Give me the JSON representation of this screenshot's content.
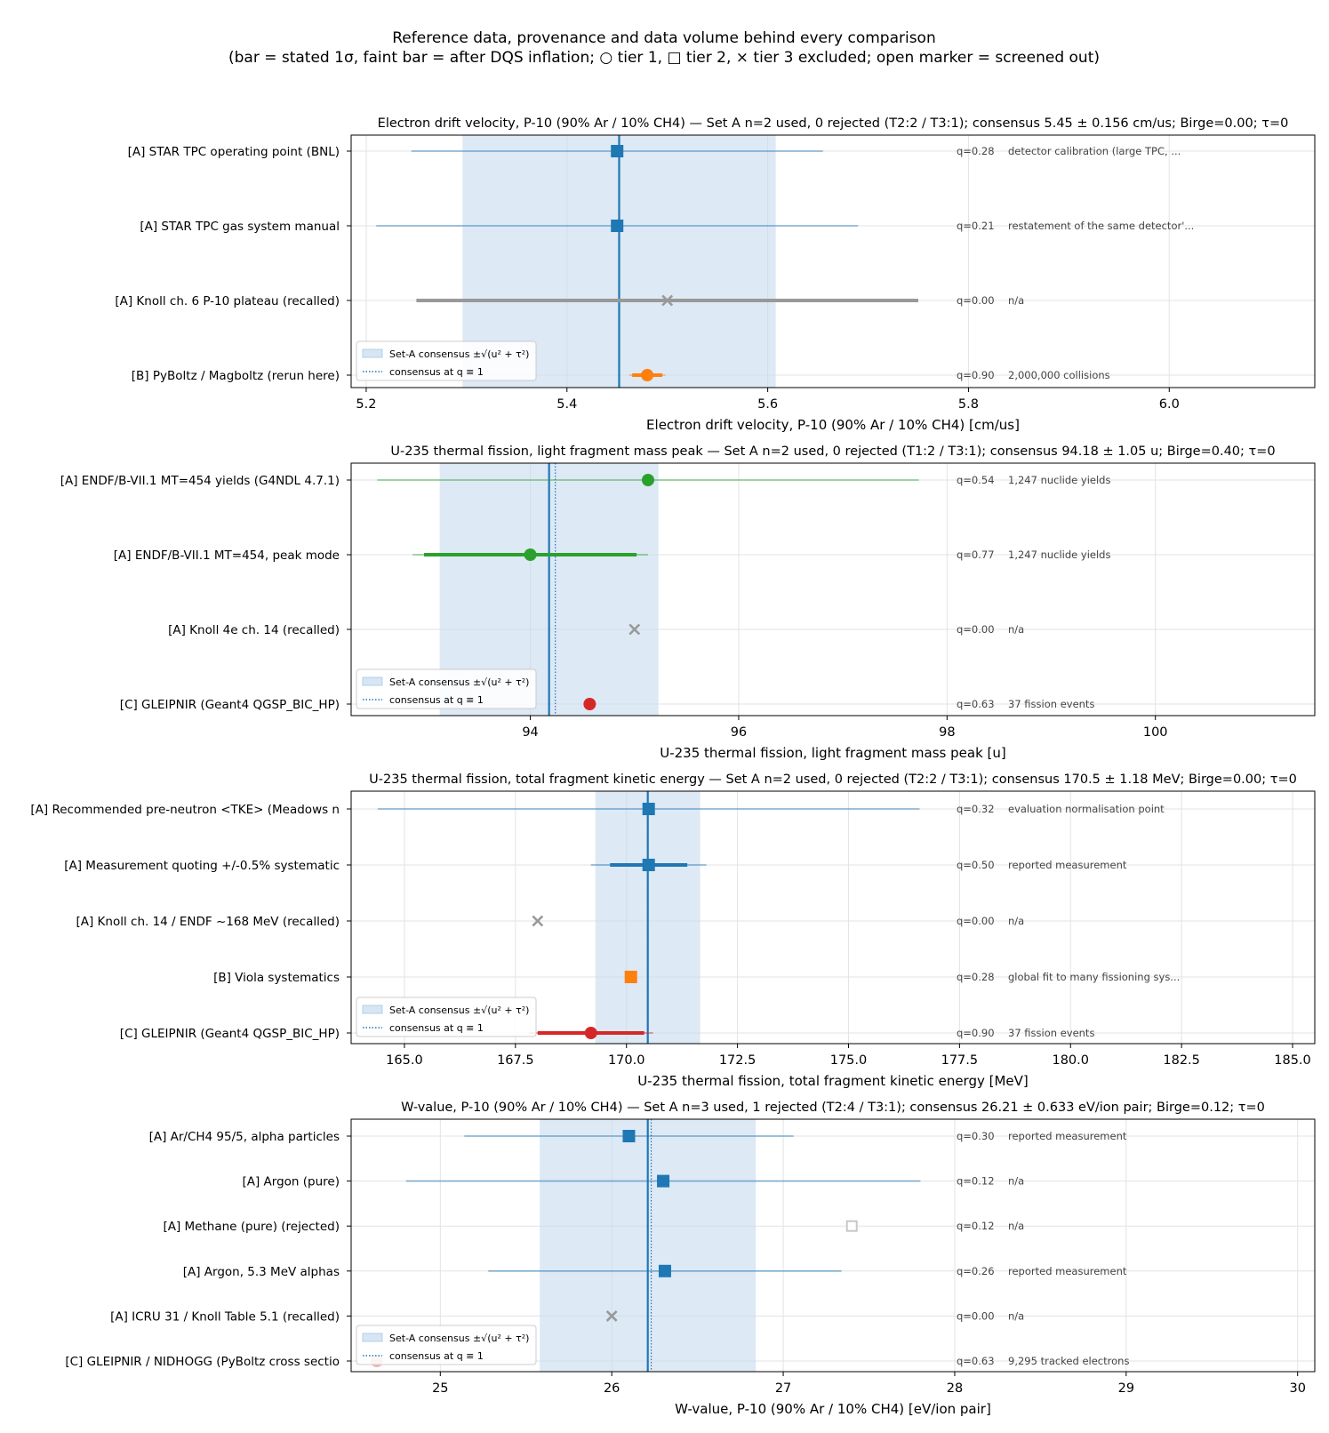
{
  "figure": {
    "title_line1": "Reference data, provenance and data volume behind every comparison",
    "title_line2": "(bar = stated 1σ, faint bar = after DQS inflation; ○ tier 1, □ tier 2, × tier 3 excluded; open marker = screened out)"
  },
  "legend": {
    "band_label": "Set-A consensus ±√(u² + τ²)",
    "line_label": "consensus at q ≡ 1"
  },
  "colors": {
    "blue": "#1f77b4",
    "orange": "#ff7f0e",
    "green": "#2ca02c",
    "red": "#d62728",
    "gray": "#999999",
    "band": "#c6dbef"
  },
  "chart_data": [
    {
      "type": "scatter",
      "title": "Electron drift velocity, P-10 (90% Ar / 10% CH4) — Set A n=2 used, 0 rejected (T2:2 / T3:1);  consensus 5.45 ± 0.156 cm/us;  Birge=0.00;  τ=0",
      "xlabel": "Electron drift velocity, P-10 (90% Ar / 10% CH4)  [cm/us]",
      "xlim": [
        5.185,
        6.145
      ],
      "xticks": [
        5.2,
        5.4,
        5.6,
        5.8,
        6.0
      ],
      "xtick_labels": [
        "5.2",
        "5.4",
        "5.6",
        "5.8",
        "6.0"
      ],
      "consensus": 5.452,
      "consensus_q1": 5.452,
      "band": [
        5.296,
        5.608
      ],
      "rows": [
        {
          "label": "[A] STAR TPC operating point (BNL)",
          "value": 5.45,
          "err_stated": null,
          "err_inflated": [
            5.245,
            5.655
          ],
          "marker": "square",
          "color": "blue",
          "filled": true,
          "annotation": "q=0.28   detector calibration (large TPC, ..."
        },
        {
          "label": "[A] STAR TPC gas system manual",
          "value": 5.45,
          "err_stated": null,
          "err_inflated": [
            5.21,
            5.69
          ],
          "marker": "square",
          "color": "blue",
          "filled": true,
          "annotation": "q=0.21   restatement of the same detector'..."
        },
        {
          "label": "[A] Knoll ch. 6 P-10 plateau (recalled)",
          "value": 5.5,
          "err_stated": [
            5.25,
            5.75
          ],
          "err_inflated": null,
          "marker": "x",
          "color": "gray",
          "filled": true,
          "annotation": "q=0.00   n/a"
        },
        {
          "label": "[B] PyBoltz / Magboltz (rerun here)",
          "value": 5.48,
          "err_stated": [
            5.465,
            5.495
          ],
          "err_inflated": [
            5.462,
            5.498
          ],
          "marker": "circle",
          "color": "orange",
          "filled": true,
          "annotation": "q=0.90   2,000,000 collisions"
        }
      ]
    },
    {
      "type": "scatter",
      "title": "U-235 thermal fission, light fragment mass peak — Set A n=2 used, 0 rejected (T1:2 / T3:1);  consensus 94.18 ± 1.05 u;  Birge=0.40;  τ=0",
      "xlabel": "U-235 thermal fission, light fragment mass peak  [u]",
      "xlim": [
        92.28,
        101.53
      ],
      "xticks": [
        94,
        96,
        98,
        100
      ],
      "xtick_labels": [
        "94",
        "96",
        "98",
        "100"
      ],
      "consensus": 94.18,
      "consensus_q1": 94.24,
      "band": [
        93.13,
        95.23
      ],
      "rows": [
        {
          "label": "[A] ENDF/B-VII.1 MT=454 yields (G4NDL 4.7.1)",
          "value": 95.13,
          "err_stated": null,
          "err_inflated": [
            92.53,
            97.73
          ],
          "marker": "circle",
          "color": "green",
          "filled": true,
          "annotation": "q=0.54   1,247 nuclide yields"
        },
        {
          "label": "[A] ENDF/B-VII.1 MT=454, peak mode",
          "value": 94.0,
          "err_stated": [
            92.98,
            95.02
          ],
          "err_inflated": [
            92.87,
            95.13
          ],
          "marker": "circle",
          "color": "green",
          "filled": true,
          "annotation": "q=0.77   1,247 nuclide yields"
        },
        {
          "label": "[A] Knoll 4e ch. 14 (recalled)",
          "value": 95.0,
          "err_stated": null,
          "err_inflated": null,
          "marker": "x",
          "color": "gray",
          "filled": true,
          "annotation": "q=0.00   n/a"
        },
        {
          "label": "[C] GLEIPNIR (Geant4 QGSP_BIC_HP)",
          "value": 94.57,
          "err_stated": null,
          "err_inflated": null,
          "marker": "circle",
          "color": "red",
          "filled": true,
          "annotation": "q=0.63   37 fission events"
        }
      ]
    },
    {
      "type": "scatter",
      "title": "U-235 thermal fission, total fragment kinetic energy — Set A n=2 used, 0 rejected (T2:2 / T3:1);  consensus 170.5 ± 1.18 MeV;  Birge=0.00;  τ=0",
      "xlabel": "U-235 thermal fission, total fragment kinetic energy  [MeV]",
      "xlim": [
        163.8,
        185.5
      ],
      "xticks": [
        165.0,
        167.5,
        170.0,
        172.5,
        175.0,
        177.5,
        180.0,
        182.5,
        185.0
      ],
      "xtick_labels": [
        "165.0",
        "167.5",
        "170.0",
        "172.5",
        "175.0",
        "177.5",
        "180.0",
        "182.5",
        "185.0"
      ],
      "consensus": 170.48,
      "consensus_q1": 170.48,
      "band": [
        169.3,
        171.66
      ],
      "rows": [
        {
          "label": "[A] Recommended pre-neutron <TKE> (Meadows n",
          "value": 170.5,
          "err_stated": null,
          "err_inflated": [
            164.4,
            176.6
          ],
          "marker": "square",
          "color": "blue",
          "filled": true,
          "annotation": "q=0.32   evaluation normalisation point"
        },
        {
          "label": "[A] Measurement quoting +/-0.5% systematic",
          "value": 170.5,
          "err_stated": [
            169.63,
            171.37
          ],
          "err_inflated": [
            169.2,
            171.8
          ],
          "marker": "square",
          "color": "blue",
          "filled": true,
          "annotation": "q=0.50   reported measurement"
        },
        {
          "label": "[A] Knoll ch. 14 / ENDF ~168 MeV (recalled)",
          "value": 168.0,
          "err_stated": null,
          "err_inflated": null,
          "marker": "x",
          "color": "gray",
          "filled": true,
          "annotation": "q=0.00   n/a"
        },
        {
          "label": "[B] Viola systematics",
          "value": 170.1,
          "err_stated": null,
          "err_inflated": null,
          "marker": "square",
          "color": "orange",
          "filled": true,
          "annotation": "q=0.28   global fit to many fissioning sys..."
        },
        {
          "label": "[C] GLEIPNIR (Geant4 QGSP_BIC_HP)",
          "value": 169.2,
          "err_stated": [
            168.0,
            170.4
          ],
          "err_inflated": [
            167.8,
            170.6
          ],
          "marker": "circle",
          "color": "red",
          "filled": true,
          "annotation": "q=0.90   37 fission events"
        }
      ]
    },
    {
      "type": "scatter",
      "title": "W-value, P-10 (90% Ar / 10% CH4) — Set A n=3 used, 1 rejected (T2:4 / T3:1);  consensus 26.21 ± 0.633 eV/ion pair;  Birge=0.12;  τ=0",
      "xlabel": "W-value, P-10 (90% Ar / 10% CH4)  [eV/ion pair]",
      "xlim": [
        24.48,
        30.1
      ],
      "xticks": [
        25,
        26,
        27,
        28,
        29,
        30
      ],
      "xtick_labels": [
        "25",
        "26",
        "27",
        "28",
        "29",
        "30"
      ],
      "consensus": 26.21,
      "consensus_q1": 26.23,
      "band": [
        25.58,
        26.84
      ],
      "rows": [
        {
          "label": "[A] Ar/CH4 95/5, alpha particles",
          "value": 26.1,
          "err_stated": null,
          "err_inflated": [
            25.14,
            27.06
          ],
          "marker": "square",
          "color": "blue",
          "filled": true,
          "annotation": "q=0.30   reported measurement"
        },
        {
          "label": "[A] Argon (pure)",
          "value": 26.3,
          "err_stated": null,
          "err_inflated": [
            24.8,
            27.8
          ],
          "marker": "square",
          "color": "blue",
          "filled": true,
          "annotation": "q=0.12   n/a"
        },
        {
          "label": "[A] Methane (pure)  (rejected)",
          "value": 27.4,
          "err_stated": null,
          "err_inflated": null,
          "marker": "square",
          "color": "gray",
          "filled": false,
          "annotation": "q=0.12   n/a"
        },
        {
          "label": "[A] Argon, 5.3 MeV alphas",
          "value": 26.31,
          "err_stated": null,
          "err_inflated": [
            25.28,
            27.34
          ],
          "marker": "square",
          "color": "blue",
          "filled": true,
          "annotation": "q=0.26   reported measurement"
        },
        {
          "label": "[A] ICRU 31 / Knoll Table 5.1 (recalled)",
          "value": 26.0,
          "err_stated": null,
          "err_inflated": null,
          "marker": "x",
          "color": "gray",
          "filled": true,
          "annotation": "q=0.00   n/a"
        },
        {
          "label": "[C] GLEIPNIR / NIDHOGG (PyBoltz cross sectio",
          "value": 24.63,
          "err_stated": null,
          "err_inflated": null,
          "marker": "circle",
          "color": "red",
          "filled": true,
          "faded": true,
          "annotation": "q=0.63   9,295 tracked electrons"
        }
      ]
    }
  ]
}
